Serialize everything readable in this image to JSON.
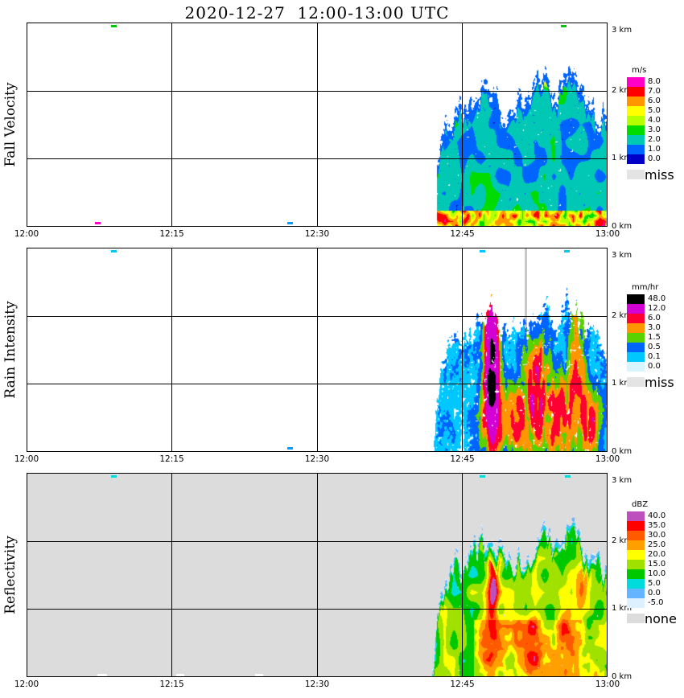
{
  "title": "2020-12-27  12:00-13:00 UTC",
  "echo_top_wiggle": 0.45,
  "echo_top_profile": [
    [
      0.7,
      0.15
    ],
    [
      0.706,
      0.85
    ],
    [
      0.716,
      1.35
    ],
    [
      0.726,
      1.6
    ],
    [
      0.74,
      1.78
    ],
    [
      0.755,
      1.72
    ],
    [
      0.77,
      1.95
    ],
    [
      0.785,
      2.05
    ],
    [
      0.8,
      2.15
    ],
    [
      0.815,
      1.85
    ],
    [
      0.83,
      1.75
    ],
    [
      0.845,
      1.9
    ],
    [
      0.86,
      1.8
    ],
    [
      0.875,
      2.1
    ],
    [
      0.89,
      2.3
    ],
    [
      0.9,
      2.05
    ],
    [
      0.915,
      1.95
    ],
    [
      0.93,
      2.3
    ],
    [
      0.945,
      2.15
    ],
    [
      0.96,
      1.95
    ],
    [
      0.975,
      1.8
    ],
    [
      0.99,
      1.7
    ],
    [
      1.0,
      1.6
    ]
  ],
  "chart_data": [
    {
      "type": "heatmap",
      "panel": "fall-velocity",
      "title": "Fall Velocity",
      "summary": "No echo 12:00-12:43 UTC. Precipitation 12:43-13:00 with tops near 2.3 km; fall velocities mostly 1-3 m/s aloft and 3-8 m/s in the lowest ~250 m; small high-velocity cluster near 12:56 at 2.1-2.3 km.",
      "x_ticks": [
        "12:00",
        "12:15",
        "12:30",
        "12:45",
        "13:00"
      ],
      "y_ticks": [
        "0 km",
        "1 km",
        "2 km",
        "3 km"
      ],
      "x_range_utc": [
        "12:00",
        "13:00"
      ],
      "y_range_km": [
        0,
        3
      ],
      "background": "#FFFFFF",
      "legend": {
        "unit_label": "m/s",
        "entries": [
          {
            "label": "8.0",
            "color": "#FF00C8"
          },
          {
            "label": "7.0",
            "color": "#FF0000"
          },
          {
            "label": "6.0",
            "color": "#FF9600"
          },
          {
            "label": "5.0",
            "color": "#FFFF00"
          },
          {
            "label": "4.0",
            "color": "#B4FF00"
          },
          {
            "label": "3.0",
            "color": "#00DC00"
          },
          {
            "label": "2.0",
            "color": "#00C8B4"
          },
          {
            "label": "1.0",
            "color": "#0064FF"
          },
          {
            "label": "0.0",
            "color": "#0000C8"
          }
        ],
        "missing": {
          "label": "miss",
          "color": "#E4E4E4"
        }
      },
      "render": {
        "kind": "fv",
        "seed": 7,
        "t_start": 0.706,
        "base": 1.15,
        "vary": 2.3,
        "bottom": {
          "km": 0.24,
          "base": 3.0,
          "vary": 5.4
        },
        "cores": [
          {
            "t": 0.894,
            "k": 2.18,
            "st": 0.01,
            "sk": 0.1,
            "amp": 4.5
          },
          {
            "t": 0.912,
            "k": 2.06,
            "st": 0.006,
            "sk": 0.07,
            "amp": 3.0
          }
        ],
        "top_clamp": {
          "depth": 0.22,
          "max": 1.8
        },
        "thresholds": [
          1,
          2,
          3,
          4,
          5,
          6,
          7,
          8,
          99999
        ],
        "holes": 0.07,
        "specks": [
          {
            "t": 0.15,
            "km": 2.95,
            "c": "#00C800"
          },
          {
            "t": 0.924,
            "km": 2.95,
            "c": "#00C800"
          },
          {
            "t": 0.123,
            "km": 0.05,
            "c": "#FF00C8"
          },
          {
            "t": 0.454,
            "km": 0.05,
            "c": "#00A0FF"
          }
        ]
      }
    },
    {
      "type": "heatmap",
      "panel": "rain-intensity",
      "title": "Rain Intensity",
      "summary": "Rain 12:43-13:00 UTC, mostly 0.1-1.5 mm/hr, with convective cores of 6-48 mm/hr between 12:48 and 12:58 below ~1.5 km; narrow gray column of missing data near 12:51.",
      "x_ticks": [
        "12:00",
        "12:15",
        "12:30",
        "12:45",
        "13:00"
      ],
      "y_ticks": [
        "0 km",
        "1 km",
        "2 km",
        "3 km"
      ],
      "x_range_utc": [
        "12:00",
        "13:00"
      ],
      "y_range_km": [
        0,
        3
      ],
      "background": "#FFFFFF",
      "legend": {
        "unit_label": "mm/hr",
        "entries": [
          {
            "label": "48.0",
            "color": "#000000"
          },
          {
            "label": "12.0",
            "color": "#D200D2"
          },
          {
            "label": "6.0",
            "color": "#FF0032"
          },
          {
            "label": "3.0",
            "color": "#FF9600"
          },
          {
            "label": "1.5",
            "color": "#5AD200"
          },
          {
            "label": "0.5",
            "color": "#0064FF"
          },
          {
            "label": "0.1",
            "color": "#00C8FF"
          },
          {
            "label": "0.0",
            "color": "#D7F4FF"
          }
        ],
        "missing": {
          "label": "miss",
          "color": "#E4E4E4"
        }
      },
      "render": {
        "kind": "rr",
        "seed": 21,
        "t_start": 0.7,
        "base": 0.04,
        "vary": 1.1,
        "tex": [
          0.25,
          1.9
        ],
        "cores": [
          {
            "t": 0.8,
            "k": 1.25,
            "st": 0.006,
            "sk": 0.45,
            "amp": 75
          },
          {
            "t": 0.803,
            "k": 0.5,
            "st": 0.013,
            "sk": 0.33,
            "amp": 9
          },
          {
            "t": 0.845,
            "k": 0.45,
            "st": 0.01,
            "sk": 0.3,
            "amp": 7
          },
          {
            "t": 0.876,
            "k": 0.85,
            "st": 0.012,
            "sk": 0.5,
            "amp": 10
          },
          {
            "t": 0.915,
            "k": 0.5,
            "st": 0.016,
            "sk": 0.35,
            "amp": 8
          },
          {
            "t": 0.947,
            "k": 1.25,
            "st": 0.008,
            "sk": 0.5,
            "amp": 6
          },
          {
            "t": 0.968,
            "k": 0.45,
            "st": 0.01,
            "sk": 0.3,
            "amp": 8
          }
        ],
        "thresholds": [
          0.1,
          0.5,
          1.5,
          3,
          6,
          12,
          48,
          99999
        ],
        "holes": 0.14,
        "gray_column": {
          "t": 0.857,
          "w": 3,
          "color": "#C8C8C8"
        },
        "specks": [
          {
            "t": 0.15,
            "km": 2.95,
            "c": "#00C8FF"
          },
          {
            "t": 0.785,
            "km": 2.95,
            "c": "#00C8FF"
          },
          {
            "t": 0.93,
            "km": 2.95,
            "c": "#00C8FF"
          },
          {
            "t": 0.454,
            "km": 0.05,
            "c": "#00A0FF"
          }
        ]
      }
    },
    {
      "type": "heatmap",
      "panel": "reflectivity",
      "title": "Reflectivity",
      "summary": "Gray background denotes no data. Echo 12:43-13:00 UTC with widespread 5-25 dBZ, cores of 30-40+ dBZ near 12:49 (1.2-1.7 km) and 12:53-12:58 below 1 km; tops near 2.3 km.",
      "x_ticks": [
        "12:00",
        "12:15",
        "12:30",
        "12:45",
        "13:00"
      ],
      "y_ticks": [
        "0 km",
        "1 km",
        "2 km",
        "3 km"
      ],
      "x_range_utc": [
        "12:00",
        "13:00"
      ],
      "y_range_km": [
        0,
        3
      ],
      "background": "#DCDCDC",
      "legend": {
        "unit_label": "dBZ",
        "entries": [
          {
            "label": "40.0",
            "color": "#BE50BE"
          },
          {
            "label": "35.0",
            "color": "#FF0000"
          },
          {
            "label": "30.0",
            "color": "#FF5A00"
          },
          {
            "label": "25.0",
            "color": "#FFA000"
          },
          {
            "label": "20.0",
            "color": "#FFFF00"
          },
          {
            "label": "15.0",
            "color": "#A0E100"
          },
          {
            "label": "10.0",
            "color": "#00C800"
          },
          {
            "label": "5.0",
            "color": "#00DCDC"
          },
          {
            "label": "0.0",
            "color": "#64B4FF"
          },
          {
            "label": "-5.0",
            "color": "#DCF0FF"
          }
        ],
        "missing": {
          "label": "none",
          "color": "#DCDCDC"
        }
      },
      "render": {
        "kind": "dbz",
        "seed": 33,
        "t_start": 0.697,
        "base": 6.5,
        "vary": 16,
        "band": {
          "km": 0.85,
          "t": 0.77,
          "amp": 8
        },
        "cores": [
          {
            "t": 0.803,
            "k": 1.45,
            "st": 0.007,
            "sk": 0.4,
            "amp": 27
          },
          {
            "t": 0.8,
            "k": 0.45,
            "st": 0.02,
            "sk": 0.4,
            "amp": 15
          },
          {
            "t": 0.872,
            "k": 0.5,
            "st": 0.018,
            "sk": 0.45,
            "amp": 17
          },
          {
            "t": 0.93,
            "k": 0.75,
            "st": 0.014,
            "sk": 0.5,
            "amp": 16
          },
          {
            "t": 0.956,
            "k": 1.55,
            "st": 0.008,
            "sk": 0.35,
            "amp": 11
          }
        ],
        "top_fringe": {
          "depth": 0.35,
          "base": -2,
          "gain": 26
        },
        "thresholds": [
          0,
          5,
          10,
          15,
          20,
          25,
          30,
          35,
          40,
          99999
        ],
        "holes": 0.05,
        "specks": [
          {
            "t": 0.15,
            "km": 2.95,
            "c": "#00DCDC"
          },
          {
            "t": 0.785,
            "km": 2.95,
            "c": "#00DCDC"
          },
          {
            "t": 0.932,
            "km": 2.95,
            "c": "#00DCDC"
          },
          {
            "t": 0.13,
            "km": 0.03,
            "c": "#FFFFFF",
            "w": 12
          },
          {
            "t": 0.265,
            "km": 0.03,
            "c": "#FFFFFF",
            "w": 10
          },
          {
            "t": 0.4,
            "km": 0.03,
            "c": "#FFFFFF",
            "w": 10
          }
        ]
      }
    }
  ]
}
